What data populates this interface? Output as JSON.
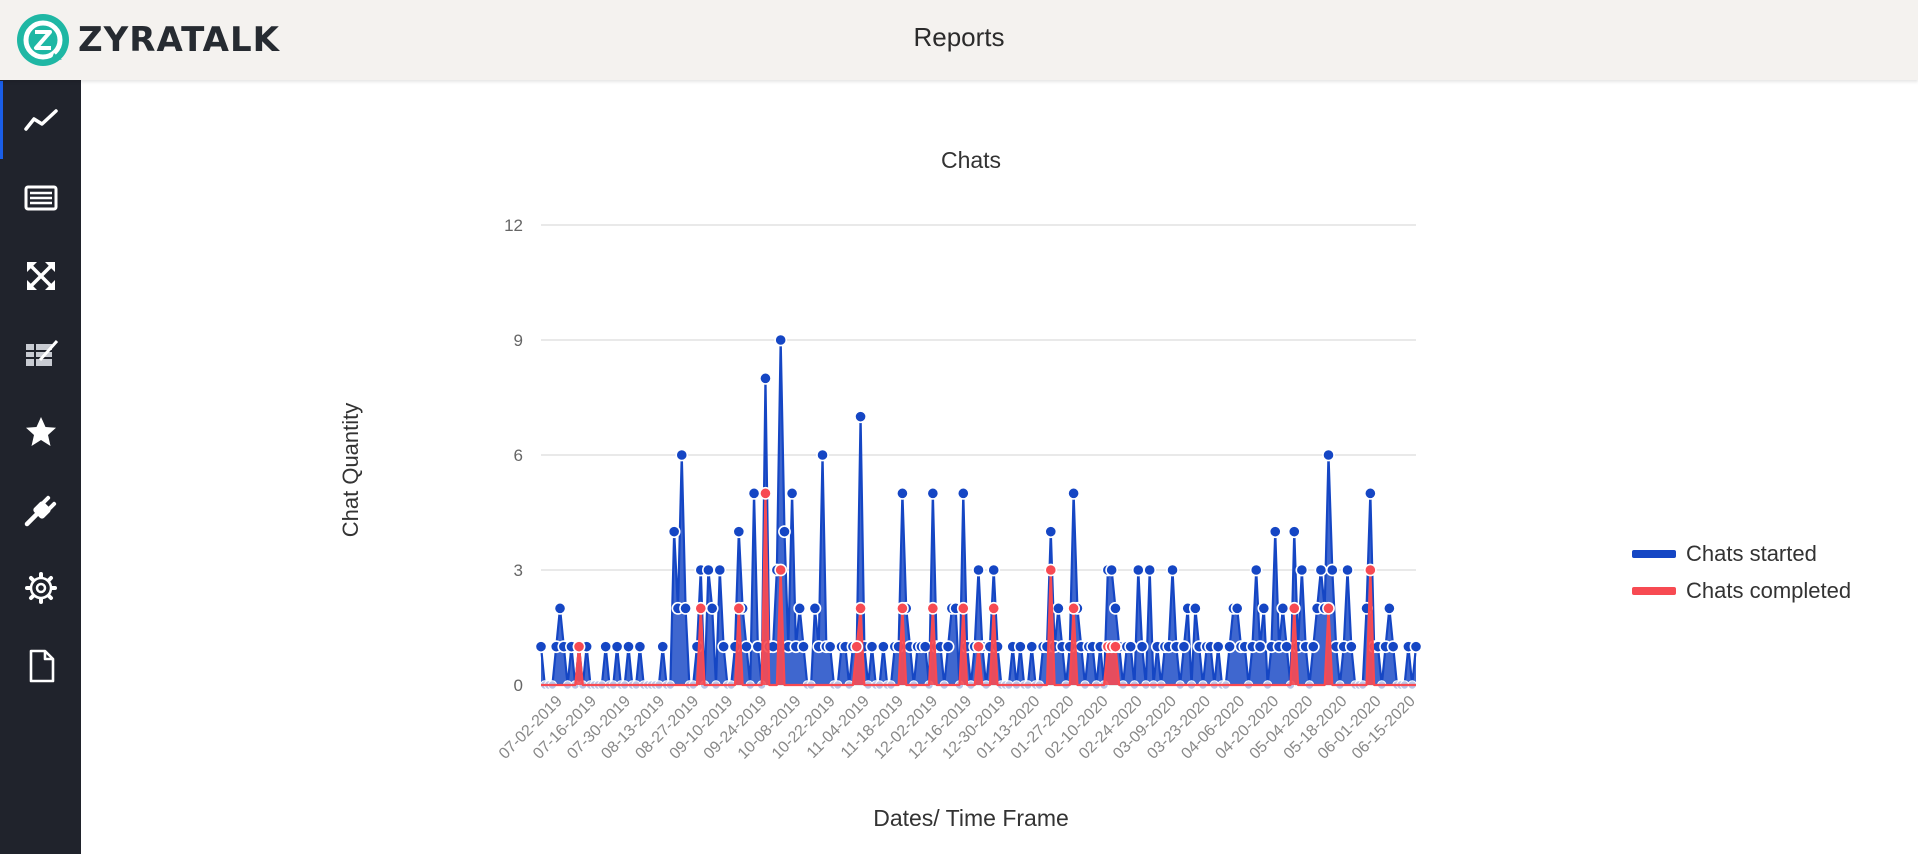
{
  "app": {
    "brand": "ZYRATALK",
    "page_title": "Reports"
  },
  "sidebar": {
    "items": [
      {
        "icon": "chart-line-icon",
        "active": true
      },
      {
        "icon": "list-icon",
        "active": false
      },
      {
        "icon": "expand-arrows-icon",
        "active": false
      },
      {
        "icon": "edit-table-icon",
        "active": false
      },
      {
        "icon": "star-icon",
        "active": false
      },
      {
        "icon": "plug-icon",
        "active": false
      },
      {
        "icon": "gear-icon",
        "active": false
      },
      {
        "icon": "file-icon",
        "active": false
      }
    ]
  },
  "colors": {
    "started": "#1546c4",
    "completed": "#f74a52",
    "sidebar": "#20232c",
    "accent": "#1a5ee8"
  },
  "chart_data": {
    "type": "line",
    "title": "Chats",
    "xlabel": "Dates/ Time Frame",
    "ylabel": "Chat Quantity",
    "ylim": [
      0,
      12
    ],
    "yticks": [
      0,
      3,
      6,
      9,
      12
    ],
    "grid": true,
    "legend_position": "right",
    "x_ticks": [
      "07-02-2019",
      "07-16-2019",
      "07-30-2019",
      "08-13-2019",
      "08-27-2019",
      "09-10-2019",
      "09-24-2019",
      "10-08-2019",
      "10-22-2019",
      "11-04-2019",
      "11-18-2019",
      "12-02-2019",
      "12-16-2019",
      "12-30-2019",
      "01-13-2020",
      "01-27-2020",
      "02-10-2020",
      "02-24-2020",
      "03-09-2020",
      "03-23-2020",
      "04-06-2020",
      "04-20-2020",
      "05-04-2020",
      "05-18-2020",
      "06-01-2020",
      "06-15-2020"
    ],
    "series": [
      {
        "name": "Chats started",
        "values": [
          1,
          0,
          0,
          0,
          1,
          2,
          1,
          0,
          1,
          0,
          1,
          0,
          1,
          0,
          0,
          0,
          0,
          1,
          0,
          0,
          1,
          0,
          0,
          1,
          0,
          0,
          1,
          0,
          0,
          0,
          0,
          0,
          1,
          0,
          0,
          4,
          2,
          6,
          2,
          0,
          0,
          1,
          3,
          0,
          3,
          2,
          0,
          3,
          1,
          0,
          0,
          1,
          4,
          2,
          1,
          0,
          5,
          1,
          0,
          8,
          1,
          1,
          3,
          9,
          4,
          1,
          5,
          1,
          2,
          1,
          0,
          0,
          2,
          1,
          6,
          1,
          1,
          0,
          0,
          1,
          1,
          0,
          1,
          1,
          7,
          1,
          0,
          1,
          0,
          0,
          1,
          0,
          0,
          1,
          1,
          5,
          2,
          1,
          0,
          1,
          1,
          1,
          0,
          5,
          1,
          1,
          0,
          1,
          2,
          2,
          0,
          5,
          1,
          0,
          1,
          3,
          1,
          0,
          1,
          3,
          1,
          0,
          0,
          0,
          1,
          0,
          1,
          0,
          0,
          1,
          0,
          0,
          1,
          1,
          4,
          1,
          2,
          1,
          0,
          1,
          5,
          2,
          1,
          0,
          1,
          1,
          0,
          1,
          0,
          3,
          3,
          2,
          1,
          0,
          1,
          1,
          0,
          3,
          1,
          0,
          3,
          0,
          1,
          0,
          1,
          1,
          3,
          1,
          0,
          1,
          2,
          0,
          2,
          1,
          0,
          1,
          1,
          0,
          1,
          0,
          0,
          1,
          2,
          2,
          1,
          1,
          0,
          1,
          3,
          1,
          2,
          0,
          1,
          4,
          1,
          2,
          1,
          0,
          4,
          1,
          3,
          1,
          0,
          1,
          2,
          3,
          2,
          6,
          3,
          1,
          0,
          1,
          3,
          1,
          0,
          0,
          0,
          2,
          5,
          1,
          1,
          0,
          1,
          2,
          1,
          0,
          0,
          0,
          1,
          0,
          1
        ]
      },
      {
        "name": "Chats completed",
        "values": [
          0,
          0,
          0,
          0,
          0,
          0,
          0,
          0,
          0,
          0,
          1,
          0,
          0,
          0,
          0,
          0,
          0,
          0,
          0,
          0,
          0,
          0,
          0,
          0,
          0,
          0,
          0,
          0,
          0,
          0,
          0,
          0,
          0,
          0,
          0,
          0,
          0,
          0,
          0,
          0,
          0,
          0,
          2,
          0,
          0,
          0,
          0,
          0,
          0,
          0,
          0,
          0,
          2,
          0,
          0,
          0,
          0,
          0,
          0,
          5,
          0,
          0,
          0,
          3,
          0,
          0,
          0,
          0,
          0,
          0,
          0,
          0,
          0,
          0,
          0,
          0,
          0,
          0,
          0,
          0,
          0,
          0,
          0,
          1,
          2,
          0,
          0,
          0,
          0,
          0,
          0,
          0,
          0,
          0,
          0,
          2,
          0,
          0,
          0,
          0,
          0,
          0,
          0,
          2,
          0,
          0,
          0,
          0,
          0,
          0,
          0,
          2,
          0,
          0,
          0,
          1,
          0,
          0,
          0,
          2,
          0,
          0,
          0,
          0,
          0,
          0,
          0,
          0,
          0,
          0,
          0,
          0,
          0,
          0,
          3,
          0,
          0,
          0,
          0,
          0,
          2,
          0,
          0,
          0,
          0,
          0,
          0,
          0,
          0,
          1,
          1,
          1,
          0,
          0,
          0,
          0,
          0,
          0,
          0,
          0,
          0,
          0,
          0,
          0,
          0,
          0,
          0,
          0,
          0,
          0,
          0,
          0,
          0,
          0,
          0,
          0,
          0,
          0,
          0,
          0,
          0,
          0,
          0,
          0,
          0,
          0,
          0,
          0,
          0,
          0,
          0,
          0,
          0,
          0,
          0,
          0,
          0,
          0,
          2,
          0,
          0,
          0,
          0,
          0,
          0,
          0,
          0,
          2,
          0,
          0,
          0,
          0,
          0,
          0,
          0,
          0,
          0,
          0,
          3,
          0,
          0,
          0,
          0,
          0,
          0,
          0,
          0,
          0,
          0,
          0,
          0
        ]
      }
    ]
  }
}
